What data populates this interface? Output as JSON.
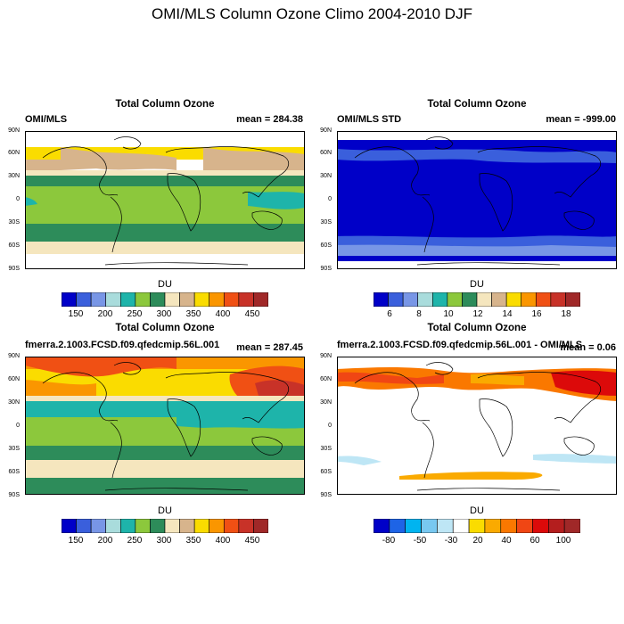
{
  "page_title": "OMI/MLS Column Ozone Climo 2004-2010 DJF",
  "lat_labels": [
    "90N",
    "60N",
    "30N",
    "0",
    "30S",
    "60S",
    "90S"
  ],
  "colors": {
    "cb1": [
      "#0000c8",
      "#3a5fdc",
      "#7896e6",
      "#a9dcdc",
      "#1eb4aa",
      "#8cc83c",
      "#2d8c5a",
      "#f5e6be",
      "#d7b48c",
      "#fadc00",
      "#fa9600",
      "#f05014",
      "#c83228",
      "#a02828"
    ],
    "cb2": [
      "#0000c8",
      "#3a5fdc",
      "#7896e6",
      "#a9dcdc",
      "#1eb4aa",
      "#8cc83c",
      "#2d8c5a",
      "#f5e6be",
      "#d7b48c",
      "#fadc00",
      "#fa9600",
      "#f05014",
      "#c83228",
      "#a02828"
    ],
    "cb4": [
      "#0000c8",
      "#1e64e6",
      "#00b4f0",
      "#78c8f0",
      "#bee6f5",
      "#ffffff",
      "#fadc00",
      "#faaa00",
      "#fa7800",
      "#f04614",
      "#dc0a0a",
      "#b41e1e",
      "#a02828"
    ]
  },
  "chart_data": [
    {
      "type": "heatmap",
      "panel": "top-left",
      "title": "Total Column Ozone",
      "left_label": "OMI/MLS",
      "right_label": "mean = 284.38",
      "colorbar_label": "DU",
      "colorbar_ticks": [
        "150",
        "200",
        "250",
        "300",
        "350",
        "400",
        "450"
      ],
      "bands": [
        {
          "lat_from": 90,
          "lat_to": 75,
          "value": "missing"
        },
        {
          "lat_from": 75,
          "lat_to": 45,
          "value": 340
        },
        {
          "lat_from": 45,
          "lat_to": 30,
          "value": 310
        },
        {
          "lat_from": 30,
          "lat_to": 20,
          "value": 290
        },
        {
          "lat_from": 20,
          "lat_to": -20,
          "value": 260
        },
        {
          "lat_from": -20,
          "lat_to": -35,
          "value": 275
        },
        {
          "lat_from": -35,
          "lat_to": -55,
          "value": 300
        },
        {
          "lat_from": -55,
          "lat_to": -70,
          "value": 320
        },
        {
          "lat_from": -70,
          "lat_to": -90,
          "value": "missing"
        }
      ]
    },
    {
      "type": "heatmap",
      "panel": "top-right",
      "title": "Total Column Ozone",
      "left_label": "OMI/MLS STD",
      "right_label": "mean = -999.00",
      "colorbar_label": "DU",
      "colorbar_ticks": [
        "6",
        "8",
        "10",
        "12",
        "14",
        "16",
        "18"
      ],
      "bands": [
        {
          "lat_from": 90,
          "lat_to": 75,
          "value": "missing"
        },
        {
          "lat_from": 75,
          "lat_to": -70,
          "value": 4.5
        },
        {
          "lat_from": -70,
          "lat_to": -90,
          "value": "missing"
        }
      ]
    },
    {
      "type": "heatmap",
      "panel": "bottom-left",
      "title": "Total Column Ozone",
      "left_label": "fmerra.2.1003.FCSD.f09.qfedcmip.56L.001",
      "right_label": "mean = 287.45",
      "colorbar_label": "DU",
      "colorbar_ticks": [
        "150",
        "200",
        "250",
        "300",
        "350",
        "400",
        "450"
      ],
      "bands": [
        {
          "lat_from": 90,
          "lat_to": 75,
          "value": 420
        },
        {
          "lat_from": 75,
          "lat_to": 40,
          "value": 370
        },
        {
          "lat_from": 40,
          "lat_to": 30,
          "value": 310
        },
        {
          "lat_from": 30,
          "lat_to": 20,
          "value": 260
        },
        {
          "lat_from": 20,
          "lat_to": -15,
          "value": 275
        },
        {
          "lat_from": -15,
          "lat_to": -40,
          "value": 300
        },
        {
          "lat_from": -40,
          "lat_to": -60,
          "value": 320
        },
        {
          "lat_from": -60,
          "lat_to": -90,
          "value": 300
        }
      ]
    },
    {
      "type": "heatmap",
      "panel": "bottom-right",
      "title": "Total Column Ozone",
      "left_label": "fmerra.2.1003.FCSD.f09.qfedcmip.56L.001 - OMI/MLS",
      "right_label": "mean = 0.06",
      "colorbar_label": "DU",
      "colorbar_ticks": [
        "-80",
        "-50",
        "-30",
        "20",
        "40",
        "60",
        "100"
      ],
      "bands": [
        {
          "lat_from": 90,
          "lat_to": 75,
          "value": 0
        },
        {
          "lat_from": 75,
          "lat_to": 55,
          "value": 45
        },
        {
          "lat_from": 55,
          "lat_to": -30,
          "value": 0
        },
        {
          "lat_from": -30,
          "lat_to": -40,
          "value": -10
        },
        {
          "lat_from": -40,
          "lat_to": -55,
          "value": 0
        },
        {
          "lat_from": -55,
          "lat_to": -62,
          "value": 30
        },
        {
          "lat_from": -62,
          "lat_to": -90,
          "value": 0
        }
      ]
    }
  ]
}
